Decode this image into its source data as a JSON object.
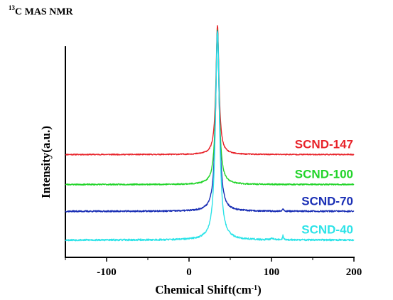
{
  "header": {
    "title_sup": "13",
    "title_text": "C MAS NMR"
  },
  "chart_data": {
    "type": "line",
    "title": "13C MAS NMR",
    "xlabel": "Chemical Shift(cm-1)",
    "xlabel_main": "Chemical Shift(cm",
    "xlabel_sup": "-1",
    "xlabel_close": ")",
    "ylabel": "Intensity(a.u.)",
    "xlim": [
      -150,
      200
    ],
    "xticks": [
      -100,
      0,
      100,
      200
    ],
    "xtick_labels": [
      "-100",
      "0",
      "100",
      "200"
    ],
    "ylim": [
      0,
      1
    ],
    "y_ticks_shown": false,
    "grid": false,
    "legend": "inline labels at right",
    "series": [
      {
        "name": "SCND-147",
        "color": "#e8232a",
        "baseline": 0.487,
        "peak_x": 34.5,
        "peak_height": 0.613,
        "peak_width": 2.2,
        "noise": 0.0025,
        "seed": 11,
        "bumps": []
      },
      {
        "name": "SCND-100",
        "color": "#22d42a",
        "baseline": 0.345,
        "peak_x": 34.5,
        "peak_height": 0.735,
        "peak_width": 2.4,
        "noise": 0.003,
        "seed": 23,
        "bumps": []
      },
      {
        "name": "SCND-70",
        "color": "#1a2fb5",
        "baseline": 0.218,
        "peak_x": 34.5,
        "peak_height": 0.857,
        "peak_width": 2.6,
        "noise": 0.0035,
        "seed": 37,
        "bumps": [
          {
            "x": 114,
            "h": 0.012,
            "w": 0.8
          }
        ]
      },
      {
        "name": "SCND-40",
        "color": "#2de3e8",
        "baseline": 0.082,
        "peak_x": 34.5,
        "peak_height": 0.99,
        "peak_width": 2.9,
        "noise": 0.004,
        "seed": 53,
        "bumps": [
          {
            "x": 114,
            "h": 0.02,
            "w": 0.7
          },
          {
            "x": 101,
            "h": 0.008,
            "w": 1.5
          }
        ]
      }
    ]
  }
}
